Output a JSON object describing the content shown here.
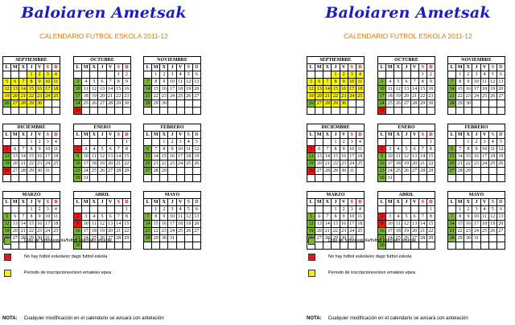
{
  "title": "Baloiaren Ametsak",
  "subtitle": "CALENDARIO FUTBOL ESKOLA 2011-12",
  "day_headers": [
    "L",
    "M",
    "X",
    "J",
    "V",
    "S",
    "D"
  ],
  "colors": {
    "green": "#7ab531",
    "red": "#e01a1a",
    "yellow": "#f7ef18",
    "title": "#1b1bc8",
    "subtitle": "#e07a10"
  },
  "months": [
    {
      "name": "SEPTIEMBRE",
      "offset": 3,
      "days": 30,
      "marks": {
        "1": "y",
        "2": "y",
        "3": "y",
        "4": "y",
        "5": "y",
        "6": "y",
        "7": "y",
        "8": "y",
        "9": "y",
        "10": "y",
        "11": "y",
        "12": "y",
        "13": "y",
        "14": "y",
        "15": "y",
        "16": "y",
        "17": "y",
        "18": "y",
        "19": "y",
        "20": "y",
        "21": "y",
        "22": "y",
        "23": "y",
        "24": "y",
        "25": "y",
        "26": "g",
        "27": "y",
        "28": "y",
        "29": "y",
        "30": "y"
      }
    },
    {
      "name": "OCTUBRE",
      "offset": 5,
      "days": 31,
      "marks": {
        "3": "g",
        "10": "g",
        "17": "g",
        "24": "g",
        "31": "r"
      }
    },
    {
      "name": "NOVIEMBRE",
      "offset": 1,
      "days": 30,
      "marks": {
        "7": "g",
        "14": "g",
        "21": "g",
        "28": "g"
      }
    },
    {
      "name": "DICIEMBRE",
      "offset": 3,
      "days": 31,
      "marks": {
        "5": "r",
        "12": "g",
        "19": "g",
        "26": "r"
      }
    },
    {
      "name": "ENERO",
      "offset": 6,
      "days": 31,
      "marks": {
        "2": "r",
        "9": "g",
        "16": "g",
        "23": "g",
        "30": "g"
      }
    },
    {
      "name": "FEBRERO",
      "offset": 2,
      "days": 29,
      "marks": {
        "6": "g",
        "13": "g",
        "20": "g",
        "27": "g"
      }
    },
    {
      "name": "MARZO",
      "offset": 3,
      "days": 31,
      "marks": {
        "5": "g",
        "12": "g",
        "19": "g",
        "26": "g"
      }
    },
    {
      "name": "ABRIL",
      "offset": 6,
      "days": 30,
      "marks": {
        "2": "r",
        "9": "r",
        "16": "g",
        "23": "g",
        "30": "g"
      }
    },
    {
      "name": "MAYO",
      "offset": 1,
      "days": 31,
      "marks": {
        "7": "g",
        "14": "g",
        "21": "g",
        "28": "g"
      }
    }
  ],
  "legend": [
    {
      "color": "green",
      "text": "Días de futbol eskola/futbol eskolako egunak"
    },
    {
      "color": "red",
      "text": "No hay futbol eskola/ez dago futbol eskola"
    },
    {
      "color": "yellow",
      "text": "Periodo de inscripciones/izen emateko epea"
    }
  ],
  "nota": {
    "label": "NOTA:",
    "text": "Cualquier modificación en el calendario se avisará con antelación"
  }
}
